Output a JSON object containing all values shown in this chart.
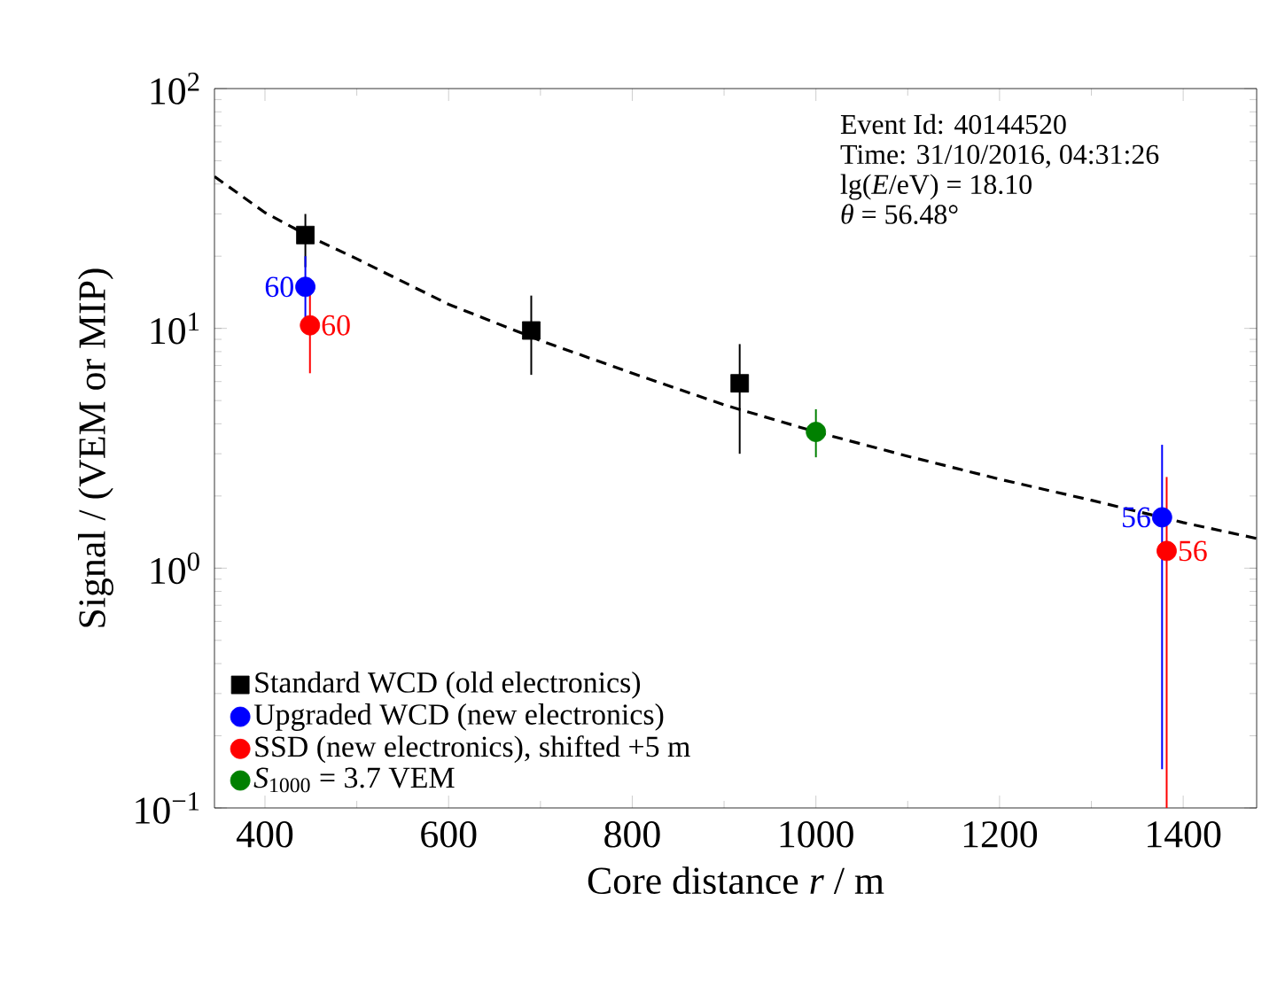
{
  "chart_data": {
    "type": "scatter",
    "xlabel": "Core distance *r* / m",
    "ylabel": "Signal / (VEM or MIP)",
    "log": "y",
    "xlim": [
      345,
      1480
    ],
    "ylim": [
      0.1,
      100
    ],
    "xticks": [
      400,
      600,
      800,
      1000,
      1200,
      1400
    ],
    "yticks": [
      {
        "value": 0.1,
        "label": "10$^{−1}$"
      },
      {
        "value": 1,
        "label": "10$^{0}$"
      },
      {
        "value": 10,
        "label": "10$^{1}$"
      },
      {
        "value": 100,
        "label": "10$^{2}$"
      }
    ],
    "legend": "bottom left",
    "grid": false,
    "annotations": [
      "Event Id: 40144520",
      "Time: 31/10/2016, 04:31:26",
      "lg(*E*/eV) = 18.10",
      "*θ* = 56.48°",
      {
        "text": "60",
        "x": 444,
        "y": 14.9
      },
      {
        "text": "60",
        "x": 449,
        "y": 10.3
      },
      {
        "text": "56",
        "x": 1377,
        "y": 1.63
      },
      {
        "text": "56",
        "x": 1382,
        "y": 1.18
      }
    ],
    "series": [
      {
        "name": "Standard WCD (old electronics)",
        "marker": "square",
        "color": "#000000",
        "x": [
          444,
          690,
          917
        ],
        "values": [
          24.5,
          9.8,
          5.9
        ],
        "errors": [
          [
            18,
            30
          ],
          [
            6.4,
            13.7
          ],
          [
            3.0,
            8.6
          ]
        ]
      },
      {
        "name": "Upgraded WCD (new electronics)",
        "marker": "circle",
        "color": "#0000ff",
        "x": [
          444,
          1377
        ],
        "values": [
          14.9,
          1.63
        ],
        "errors": [
          [
            10.5,
            20
          ],
          [
            0.145,
            3.27
          ]
        ]
      },
      {
        "name": "SSD (new electronics), shifted +5 m",
        "marker": "circle",
        "color": "#ff0000",
        "x": [
          449,
          1382
        ],
        "values": [
          10.3,
          1.18
        ],
        "errors": [
          [
            6.5,
            14
          ],
          [
            0.1,
            2.4
          ]
        ]
      },
      {
        "name": "*S*$_{1000}$ = 3.7 VEM",
        "marker": "circle",
        "color": "#008000",
        "x": [
          1000
        ],
        "values": [
          3.7
        ],
        "errors": [
          [
            2.9,
            4.6
          ]
        ]
      },
      {
        "type": "line",
        "marker": "none",
        "line_style": "dashed",
        "color": "#000000",
        "x": [
          345,
          400,
          450,
          500,
          600,
          700,
          800,
          900,
          1000,
          1100,
          1200,
          1300,
          1400,
          1480
        ],
        "values": [
          43,
          30.4,
          24,
          19.5,
          12.6,
          8.9,
          6.5,
          4.8,
          3.7,
          2.93,
          2.35,
          1.92,
          1.55,
          1.33
        ]
      }
    ]
  }
}
